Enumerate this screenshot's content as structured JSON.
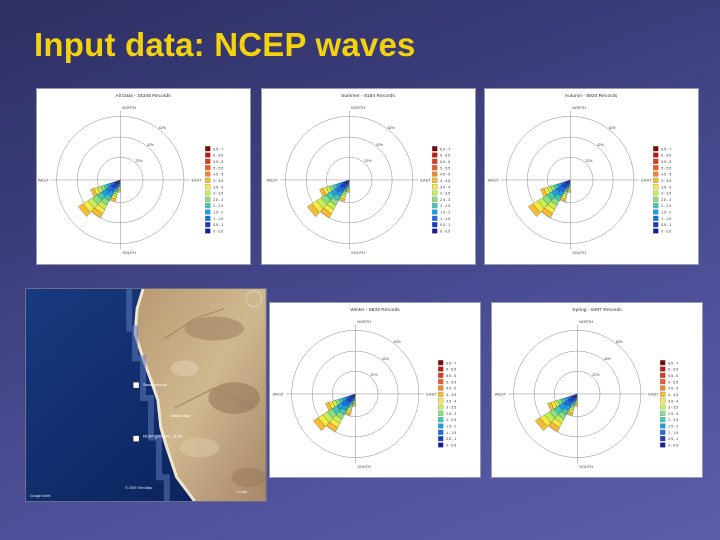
{
  "slide": {
    "title": "Input data: NCEP waves"
  },
  "legend": {
    "bins": [
      "6.5 - 7",
      "6 - 6.5",
      "5.5 - 6",
      "5 - 5.5",
      "4.5 - 5",
      "4 - 4.5",
      "3.5 - 4",
      "3 - 3.5",
      "2.5 - 3",
      "2 - 2.5",
      "1.5 - 2",
      "1 - 1.5",
      "0.5 - 1",
      "0 - 0.5"
    ],
    "colors": [
      "#7a0a0a",
      "#c41616",
      "#e03a1e",
      "#ec5a2a",
      "#f2882e",
      "#f8bc32",
      "#f7ea44",
      "#c8ee58",
      "#88e07e",
      "#40c8b4",
      "#1a9ee4",
      "#1e6ee6",
      "#1a3ccc",
      "#1a1a9e"
    ]
  },
  "roses": [
    {
      "title": "All Data - 34348 Records",
      "directions": {
        "north": "NORTH",
        "south": "SOUTH",
        "east": "EAST",
        "west": "WEST"
      },
      "rings": [
        "22%",
        "42%",
        "62%"
      ]
    },
    {
      "title": "Summer - 8184 Records",
      "directions": {
        "north": "NORTH",
        "south": "SOUTH",
        "east": "EAST",
        "west": "WEST"
      },
      "rings": [
        "22%",
        "42%",
        "62%"
      ]
    },
    {
      "title": "Autumn - 8834 Records",
      "directions": {
        "north": "NORTH",
        "south": "SOUTH",
        "east": "EAST",
        "west": "WEST"
      },
      "rings": [
        "22%",
        "42%",
        "62%"
      ]
    },
    {
      "title": "Winter - 8833 Records",
      "directions": {
        "north": "NORTH",
        "south": "SOUTH",
        "east": "EAST",
        "west": "WEST"
      },
      "rings": [
        "22%",
        "42%",
        "62%"
      ]
    },
    {
      "title": "Spring - 8497 Records",
      "directions": {
        "north": "NORTH",
        "south": "SOUTH",
        "east": "EAST",
        "west": "WEST"
      },
      "rings": [
        "22%",
        "42%",
        "62%"
      ]
    }
  ],
  "map": {
    "labels": [
      "Swakopmund",
      "Walvis Bay",
      "NCEP grid 22S, 13.5E"
    ],
    "footer_left": "Google Earth",
    "footer_mid": "© 2009 Tele Atlas",
    "footer_right": "Google",
    "colors": {
      "ocean": "#0e2a68",
      "land": "#c9b08a",
      "coast": "#e8dcc4"
    }
  }
}
